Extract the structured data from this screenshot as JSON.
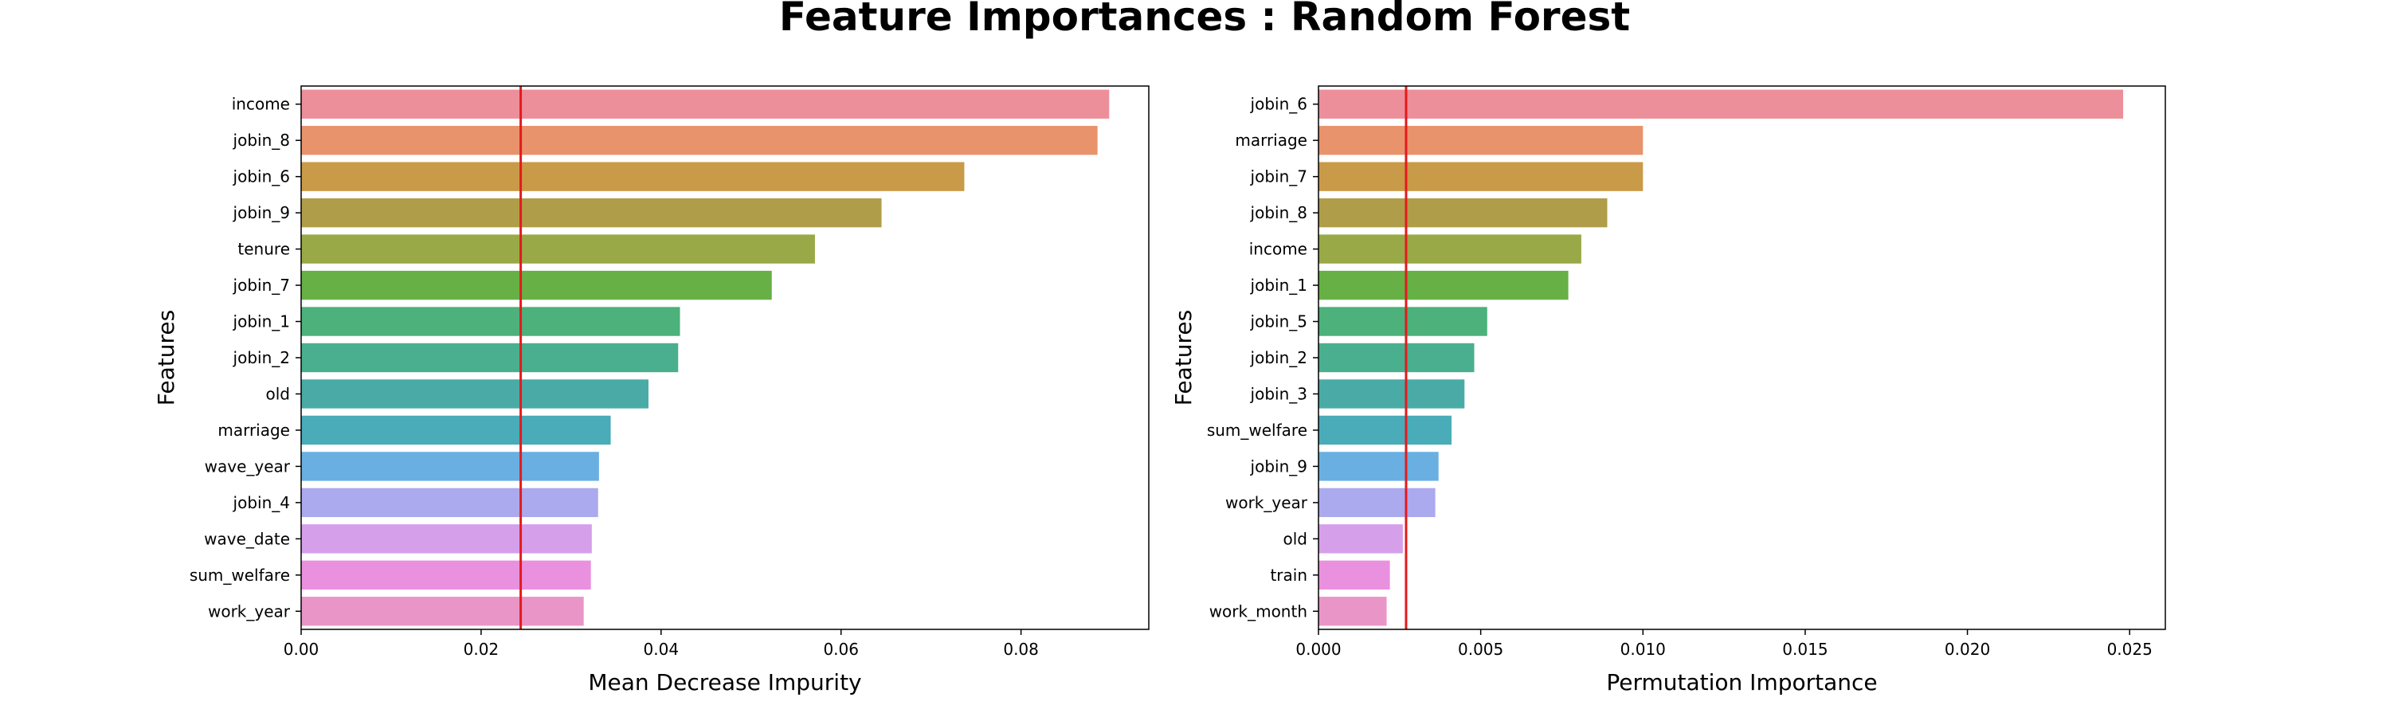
{
  "suptitle": "Feature Importances : Random Forest",
  "chart_data": [
    {
      "type": "bar",
      "orientation": "horizontal",
      "categories": [
        "income",
        "jobin_8",
        "jobin_6",
        "jobin_9",
        "tenure",
        "jobin_7",
        "jobin_1",
        "jobin_2",
        "old",
        "marriage",
        "wave_year",
        "jobin_4",
        "wave_date",
        "sum_welfare",
        "work_year"
      ],
      "values": [
        0.0898,
        0.0885,
        0.0737,
        0.0645,
        0.0571,
        0.0523,
        0.0421,
        0.0419,
        0.0386,
        0.0344,
        0.0331,
        0.033,
        0.0323,
        0.0322,
        0.0314
      ],
      "colors": [
        "#ed8f9a",
        "#e8936c",
        "#c99a48",
        "#b09d49",
        "#99a947",
        "#67b046",
        "#4db17b",
        "#4aaf8e",
        "#4aaba6",
        "#4aabb9",
        "#6aafe1",
        "#abaaee",
        "#d59fea",
        "#e991de",
        "#e995c7"
      ],
      "title": "",
      "xlabel": "Mean Decrease Impurity",
      "ylabel": "Features",
      "xlim": [
        0,
        0.0942
      ],
      "xticks": [
        0.0,
        0.02,
        0.04,
        0.06,
        0.08
      ],
      "tick_labels": [
        "0.00",
        "0.02",
        "0.04",
        "0.06",
        "0.08"
      ],
      "reference_line": {
        "value": 0.0244,
        "color": "#e41a1c"
      },
      "grid": false,
      "legend": "none"
    },
    {
      "type": "bar",
      "orientation": "horizontal",
      "categories": [
        "jobin_6",
        "marriage",
        "jobin_7",
        "jobin_8",
        "income",
        "jobin_1",
        "jobin_5",
        "jobin_2",
        "jobin_3",
        "sum_welfare",
        "jobin_9",
        "work_year",
        "old",
        "train",
        "work_month"
      ],
      "values": [
        0.0248,
        0.01,
        0.01,
        0.0089,
        0.0081,
        0.0077,
        0.0052,
        0.0048,
        0.0045,
        0.0041,
        0.0037,
        0.0036,
        0.0026,
        0.0022,
        0.0021
      ],
      "colors": [
        "#ed8f9a",
        "#e8936c",
        "#c99a48",
        "#b09d49",
        "#99a947",
        "#67b046",
        "#4db17b",
        "#4aaf8e",
        "#4aaba6",
        "#4aabb9",
        "#6aafe1",
        "#abaaee",
        "#d59fea",
        "#e991de",
        "#e995c7"
      ],
      "title": "",
      "xlabel": "Permutation Importance",
      "ylabel": "Features",
      "xlim": [
        0,
        0.0261
      ],
      "xticks": [
        0.0,
        0.005,
        0.01,
        0.015,
        0.02,
        0.025
      ],
      "tick_labels": [
        "0.000",
        "0.005",
        "0.010",
        "0.015",
        "0.020",
        "0.025"
      ],
      "reference_line": {
        "value": 0.0027,
        "color": "#e41a1c"
      },
      "grid": false,
      "legend": "none"
    }
  ]
}
